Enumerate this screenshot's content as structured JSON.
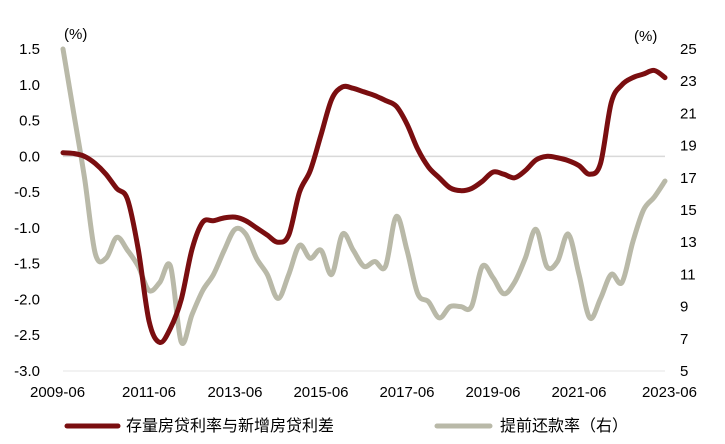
{
  "chart_data": {
    "type": "line",
    "left_unit": "(%)",
    "right_unit": "(%)",
    "x_ticks": [
      "2009-06",
      "2011-06",
      "2013-06",
      "2015-06",
      "2017-06",
      "2019-06",
      "2021-06",
      "2023-06"
    ],
    "x_range": [
      "2009-06",
      "2023-06"
    ],
    "left_axis": {
      "min": -3.0,
      "max": 1.5,
      "step": 0.5,
      "tick_labels": [
        "1.5",
        "1.0",
        "0.5",
        "0.0",
        "-0.5",
        "-1.0",
        "-1.5",
        "-2.0",
        "-2.5",
        "-3.0"
      ]
    },
    "right_axis": {
      "min": 5,
      "max": 25,
      "step": 2,
      "tick_labels": [
        "25",
        "23",
        "21",
        "19",
        "17",
        "15",
        "13",
        "11",
        "9",
        "7",
        "5"
      ]
    },
    "zero_line": true,
    "legend_position": "bottom",
    "colors": {
      "spread": "#7a0e10",
      "prepay": "#b9b9a8",
      "zero_line": "#d9d9d9"
    },
    "series": [
      {
        "name": "存量房贷利率与新增房贷利差",
        "axis": "left",
        "points": [
          [
            "2009-06",
            0.05
          ],
          [
            "2009-09",
            0.04
          ],
          [
            "2009-12",
            0.0
          ],
          [
            "2010-03",
            -0.1
          ],
          [
            "2010-06",
            -0.25
          ],
          [
            "2010-09",
            -0.45
          ],
          [
            "2010-12",
            -0.6
          ],
          [
            "2011-03",
            -1.3
          ],
          [
            "2011-06",
            -2.3
          ],
          [
            "2011-09",
            -2.6
          ],
          [
            "2011-12",
            -2.4
          ],
          [
            "2012-03",
            -2.0
          ],
          [
            "2012-06",
            -1.3
          ],
          [
            "2012-09",
            -0.92
          ],
          [
            "2012-12",
            -0.9
          ],
          [
            "2013-03",
            -0.86
          ],
          [
            "2013-06",
            -0.85
          ],
          [
            "2013-09",
            -0.9
          ],
          [
            "2013-12",
            -1.0
          ],
          [
            "2014-03",
            -1.1
          ],
          [
            "2014-06",
            -1.2
          ],
          [
            "2014-09",
            -1.1
          ],
          [
            "2014-12",
            -0.5
          ],
          [
            "2015-03",
            -0.2
          ],
          [
            "2015-06",
            0.3
          ],
          [
            "2015-09",
            0.8
          ],
          [
            "2015-12",
            0.97
          ],
          [
            "2016-03",
            0.95
          ],
          [
            "2016-06",
            0.9
          ],
          [
            "2016-09",
            0.85
          ],
          [
            "2016-12",
            0.78
          ],
          [
            "2017-03",
            0.7
          ],
          [
            "2017-06",
            0.45
          ],
          [
            "2017-09",
            0.1
          ],
          [
            "2017-12",
            -0.15
          ],
          [
            "2018-03",
            -0.3
          ],
          [
            "2018-06",
            -0.44
          ],
          [
            "2018-09",
            -0.48
          ],
          [
            "2018-12",
            -0.45
          ],
          [
            "2019-03",
            -0.35
          ],
          [
            "2019-06",
            -0.22
          ],
          [
            "2019-09",
            -0.25
          ],
          [
            "2019-12",
            -0.3
          ],
          [
            "2020-03",
            -0.2
          ],
          [
            "2020-06",
            -0.05
          ],
          [
            "2020-09",
            0.0
          ],
          [
            "2020-12",
            -0.02
          ],
          [
            "2021-03",
            -0.06
          ],
          [
            "2021-06",
            -0.13
          ],
          [
            "2021-09",
            -0.25
          ],
          [
            "2021-12",
            -0.1
          ],
          [
            "2022-03",
            0.75
          ],
          [
            "2022-06",
            1.0
          ],
          [
            "2022-09",
            1.1
          ],
          [
            "2022-12",
            1.15
          ],
          [
            "2023-03",
            1.2
          ],
          [
            "2023-06",
            1.1
          ]
        ]
      },
      {
        "name": "提前还款率（右）",
        "axis": "right",
        "points": [
          [
            "2009-06",
            25.0
          ],
          [
            "2009-09",
            21.0
          ],
          [
            "2009-12",
            17.0
          ],
          [
            "2010-03",
            12.3
          ],
          [
            "2010-06",
            12.0
          ],
          [
            "2010-09",
            13.3
          ],
          [
            "2010-12",
            12.5
          ],
          [
            "2011-03",
            11.5
          ],
          [
            "2011-06",
            10.0
          ],
          [
            "2011-09",
            10.5
          ],
          [
            "2011-12",
            11.5
          ],
          [
            "2012-03",
            6.8
          ],
          [
            "2012-06",
            8.5
          ],
          [
            "2012-09",
            10.0
          ],
          [
            "2012-12",
            11.0
          ],
          [
            "2013-03",
            12.5
          ],
          [
            "2013-06",
            13.8
          ],
          [
            "2013-09",
            13.5
          ],
          [
            "2013-12",
            12.0
          ],
          [
            "2014-03",
            11.0
          ],
          [
            "2014-06",
            9.5
          ],
          [
            "2014-09",
            11.0
          ],
          [
            "2014-12",
            12.8
          ],
          [
            "2015-03",
            12.0
          ],
          [
            "2015-06",
            12.5
          ],
          [
            "2015-09",
            11.0
          ],
          [
            "2015-12",
            13.5
          ],
          [
            "2016-03",
            12.5
          ],
          [
            "2016-06",
            11.5
          ],
          [
            "2016-09",
            11.8
          ],
          [
            "2016-12",
            11.5
          ],
          [
            "2017-03",
            14.6
          ],
          [
            "2017-06",
            12.5
          ],
          [
            "2017-09",
            9.8
          ],
          [
            "2017-12",
            9.3
          ],
          [
            "2018-03",
            8.3
          ],
          [
            "2018-06",
            9.0
          ],
          [
            "2018-09",
            9.0
          ],
          [
            "2018-12",
            9.0
          ],
          [
            "2019-03",
            11.5
          ],
          [
            "2019-06",
            10.8
          ],
          [
            "2019-09",
            9.8
          ],
          [
            "2019-12",
            10.5
          ],
          [
            "2020-03",
            12.0
          ],
          [
            "2020-06",
            13.8
          ],
          [
            "2020-09",
            11.5
          ],
          [
            "2020-12",
            11.8
          ],
          [
            "2021-03",
            13.5
          ],
          [
            "2021-06",
            11.0
          ],
          [
            "2021-09",
            8.3
          ],
          [
            "2021-12",
            9.5
          ],
          [
            "2022-03",
            11.0
          ],
          [
            "2022-06",
            10.5
          ],
          [
            "2022-09",
            13.0
          ],
          [
            "2022-12",
            15.0
          ],
          [
            "2023-03",
            15.8
          ],
          [
            "2023-06",
            16.8
          ]
        ]
      }
    ]
  }
}
